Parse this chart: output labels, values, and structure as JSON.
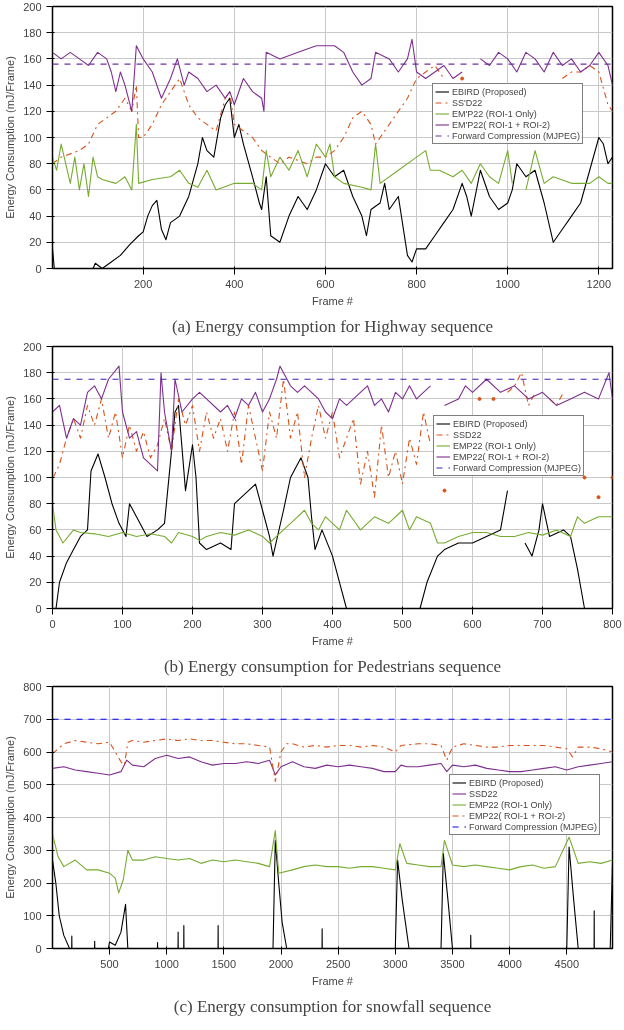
{
  "chart_data": [
    {
      "type": "line",
      "title": "(a) Energy consumption for Highway sequence",
      "xlabel": "Frame #",
      "ylabel": "Energy Consumption (mJ/Frame)",
      "xlim": [
        1,
        1230
      ],
      "xticks": [
        200,
        400,
        600,
        800,
        1000,
        1200
      ],
      "ylim": [
        0,
        200
      ],
      "yticks": [
        0,
        20,
        40,
        60,
        80,
        100,
        120,
        140,
        160,
        180,
        200
      ],
      "grid": true,
      "legend": "right",
      "series": [
        {
          "name": "EBIRD (Proposed)",
          "color": "#000000",
          "line_style": "solid",
          "x": [
            1,
            5,
            90,
            95,
            110,
            130,
            150,
            170,
            190,
            200,
            210,
            220,
            230,
            240,
            250,
            260,
            280,
            300,
            320,
            330,
            340,
            355,
            370,
            380,
            390,
            400,
            410,
            420,
            440,
            455,
            460,
            470,
            480,
            500,
            520,
            540,
            560,
            580,
            600,
            620,
            640,
            660,
            680,
            690,
            700,
            720,
            730,
            740,
            760,
            780,
            790,
            800,
            820,
            840,
            860,
            880,
            900,
            910,
            920,
            940,
            960,
            980,
            1000,
            1010,
            1020,
            1040,
            1060,
            1080,
            1100,
            1120,
            1140,
            1160,
            1180,
            1200,
            1210,
            1220,
            1230
          ],
          "values": [
            15,
            0,
            0,
            4,
            0,
            5,
            10,
            18,
            25,
            28,
            40,
            48,
            52,
            30,
            22,
            35,
            40,
            55,
            80,
            100,
            90,
            85,
            115,
            125,
            130,
            100,
            110,
            95,
            70,
            50,
            45,
            70,
            25,
            20,
            40,
            55,
            45,
            60,
            80,
            70,
            75,
            55,
            40,
            25,
            45,
            50,
            65,
            45,
            55,
            10,
            5,
            15,
            15,
            25,
            35,
            45,
            65,
            55,
            40,
            75,
            55,
            45,
            50,
            60,
            80,
            70,
            75,
            50,
            20,
            30,
            40,
            50,
            75,
            100,
            95,
            80,
            85
          ]
        },
        {
          "name": "SS'D22",
          "color": "#d95319",
          "line_style": "dashdot",
          "x": [
            1,
            20,
            60,
            80,
            100,
            120,
            140,
            160,
            175,
            185,
            190,
            200,
            220,
            240,
            260,
            280,
            300,
            320,
            340,
            360,
            380,
            390,
            400,
            420,
            440,
            460,
            480,
            500,
            520,
            560,
            580,
            600,
            620,
            640,
            660,
            680,
            700,
            710,
            720,
            740,
            760,
            780,
            800,
            820,
            840,
            860,
            880,
            900,
            920,
            940,
            960,
            980,
            1000,
            1020,
            1040,
            1060,
            1080,
            1100,
            1120,
            1140,
            1160,
            1180,
            1200,
            1220,
            1230
          ],
          "values": [
            80,
            85,
            90,
            95,
            110,
            115,
            120,
            130,
            120,
            140,
            100,
            100,
            110,
            125,
            135,
            145,
            125,
            115,
            110,
            105,
            130,
            135,
            110,
            105,
            100,
            90,
            85,
            80,
            85,
            80,
            85,
            85,
            90,
            100,
            115,
            120,
            110,
            95,
            100,
            110,
            120,
            130,
            145,
            150,
            155,
            145,
            null,
            145,
            null,
            null,
            null,
            null,
            null,
            null,
            null,
            null,
            null,
            null,
            145,
            150,
            150,
            155,
            150,
            125,
            120
          ]
        },
        {
          "name": "EM'P22 (ROI-1 Only)",
          "color": "#77ac30",
          "line_style": "solid",
          "x": [
            1,
            10,
            20,
            30,
            40,
            50,
            60,
            70,
            80,
            90,
            100,
            110,
            140,
            160,
            175,
            185,
            190,
            220,
            260,
            280,
            300,
            320,
            340,
            360,
            400,
            440,
            460,
            470,
            480,
            500,
            520,
            540,
            560,
            580,
            600,
            610,
            620,
            640,
            680,
            700,
            710,
            720,
            760,
            800,
            820,
            830,
            850,
            880,
            900,
            920,
            940,
            960,
            980,
            1000,
            1010,
            1020,
            1040,
            1060,
            1080,
            1100,
            1140,
            1180,
            1200,
            1220,
            1230
          ],
          "values": [
            85,
            75,
            95,
            80,
            65,
            85,
            60,
            80,
            55,
            85,
            70,
            68,
            65,
            70,
            60,
            110,
            65,
            68,
            70,
            75,
            65,
            62,
            75,
            60,
            65,
            65,
            60,
            90,
            70,
            85,
            75,
            90,
            70,
            95,
            85,
            95,
            70,
            65,
            62,
            60,
            95,
            65,
            75,
            85,
            90,
            75,
            75,
            70,
            75,
            65,
            80,
            70,
            65,
            90,
            65,
            null,
            60,
            90,
            65,
            70,
            65,
            65,
            70,
            65,
            65
          ]
        },
        {
          "name": "EM'P22( ROI-1 + ROI-2)",
          "color": "#7e2f8e",
          "line_style": "solid",
          "x": [
            1,
            20,
            40,
            60,
            80,
            100,
            120,
            130,
            140,
            150,
            160,
            175,
            185,
            200,
            220,
            240,
            260,
            275,
            290,
            300,
            320,
            340,
            360,
            380,
            390,
            400,
            420,
            440,
            460,
            465,
            470,
            500,
            540,
            580,
            620,
            640,
            660,
            680,
            700,
            710,
            740,
            760,
            780,
            790,
            800,
            820,
            840,
            860,
            880,
            900,
            920,
            940,
            960,
            980,
            1000,
            1020,
            1040,
            1060,
            1080,
            1100,
            1120,
            1140,
            1160,
            1180,
            1200,
            1220,
            1230
          ],
          "values": [
            165,
            160,
            165,
            160,
            155,
            165,
            160,
            150,
            135,
            150,
            140,
            120,
            170,
            160,
            150,
            130,
            145,
            160,
            140,
            150,
            145,
            135,
            140,
            130,
            135,
            125,
            145,
            135,
            130,
            120,
            165,
            160,
            165,
            170,
            170,
            165,
            150,
            140,
            145,
            165,
            160,
            150,
            160,
            175,
            150,
            145,
            150,
            155,
            145,
            150,
            null,
            160,
            155,
            165,
            160,
            150,
            165,
            160,
            150,
            165,
            155,
            160,
            150,
            155,
            165,
            155,
            140
          ]
        },
        {
          "name": "Forward Compression (MJPEG)",
          "color": "#7030a0",
          "line_style": "dashed",
          "x": [
            1,
            1230
          ],
          "values": [
            156,
            156
          ]
        }
      ]
    },
    {
      "type": "line",
      "title": "(b) Energy consumption for Pedestrians sequence",
      "xlabel": "Frame #",
      "ylabel": "Energy Consumption (mJ/Frame)",
      "xlim": [
        0,
        800
      ],
      "xticks": [
        0,
        100,
        200,
        300,
        400,
        500,
        600,
        700,
        800
      ],
      "ylim": [
        0,
        200
      ],
      "yticks": [
        0,
        20,
        40,
        60,
        80,
        100,
        120,
        140,
        160,
        180,
        200
      ],
      "grid": true,
      "legend": "right",
      "series": [
        {
          "name": "EBIRD (Proposed)",
          "color": "#000000",
          "line_style": "solid",
          "x": [
            0,
            5,
            10,
            20,
            30,
            40,
            50,
            55,
            65,
            75,
            85,
            95,
            105,
            110,
            120,
            135,
            150,
            160,
            170,
            175,
            180,
            190,
            200,
            205,
            210,
            220,
            240,
            255,
            260,
            280,
            290,
            300,
            310,
            315,
            330,
            340,
            355,
            365,
            370,
            375,
            385,
            400,
            410,
            420,
            525,
            535,
            550,
            560,
            580,
            600,
            620,
            640,
            650,
            660,
            670,
            675,
            685,
            695,
            700,
            710,
            730,
            740,
            750,
            760,
            800
          ],
          "values": [
            0,
            0,
            20,
            35,
            45,
            55,
            60,
            105,
            118,
            100,
            80,
            65,
            55,
            80,
            70,
            55,
            60,
            65,
            120,
            150,
            155,
            90,
            125,
            100,
            50,
            45,
            50,
            45,
            80,
            90,
            95,
            75,
            55,
            40,
            75,
            100,
            115,
            100,
            70,
            45,
            60,
            40,
            20,
            0,
            0,
            20,
            40,
            45,
            50,
            50,
            55,
            60,
            90,
            null,
            null,
            50,
            40,
            60,
            80,
            55,
            60,
            55,
            30,
            0,
            0
          ]
        },
        {
          "name": "SSD22",
          "color": "#d95319",
          "line_style": "dashdot",
          "x": [
            1,
            10,
            20,
            30,
            40,
            50,
            60,
            70,
            80,
            90,
            100,
            110,
            120,
            130,
            140,
            150,
            160,
            170,
            180,
            190,
            200,
            210,
            220,
            230,
            240,
            250,
            260,
            270,
            280,
            290,
            300,
            310,
            320,
            330,
            340,
            350,
            360,
            370,
            380,
            390,
            400,
            410,
            420,
            430,
            440,
            450,
            460,
            470,
            480,
            490,
            500,
            510,
            520,
            530,
            540,
            550,
            560,
            570,
            580,
            590,
            600,
            610,
            620,
            630,
            640,
            650,
            660,
            670,
            680,
            690,
            700,
            710,
            720,
            730,
            740,
            750,
            760,
            770,
            780,
            790,
            800
          ],
          "values": [
            100,
            110,
            130,
            145,
            130,
            155,
            140,
            160,
            130,
            150,
            115,
            140,
            120,
            135,
            115,
            125,
            145,
            120,
            160,
            140,
            155,
            120,
            150,
            130,
            145,
            120,
            150,
            110,
            155,
            130,
            105,
            150,
            130,
            175,
            130,
            150,
            100,
            130,
            155,
            130,
            150,
            115,
            130,
            145,
            95,
            120,
            85,
            140,
            100,
            120,
            95,
            130,
            110,
            150,
            125,
            null,
            90,
            null,
            null,
            null,
            null,
            160,
            null,
            160,
            null,
            165,
            170,
            180,
            155,
            165,
            null,
            160,
            155,
            165,
            null,
            null,
            100,
            null,
            85,
            null,
            100
          ]
        },
        {
          "name": "EMP22 (ROI-1 Only)",
          "color": "#77ac30",
          "line_style": "solid",
          "x": [
            0,
            5,
            15,
            30,
            40,
            60,
            80,
            100,
            120,
            140,
            160,
            170,
            180,
            200,
            210,
            220,
            240,
            260,
            280,
            300,
            310,
            320,
            330,
            340,
            350,
            360,
            370,
            380,
            390,
            400,
            410,
            420,
            440,
            460,
            480,
            500,
            510,
            520,
            540,
            550,
            560,
            580,
            600,
            620,
            640,
            660,
            680,
            700,
            720,
            740,
            750,
            760,
            780,
            800
          ],
          "values": [
            80,
            60,
            50,
            60,
            58,
            57,
            55,
            58,
            55,
            57,
            55,
            50,
            58,
            55,
            52,
            55,
            58,
            56,
            60,
            55,
            50,
            55,
            60,
            65,
            70,
            75,
            65,
            60,
            70,
            65,
            60,
            75,
            60,
            70,
            65,
            75,
            60,
            70,
            65,
            50,
            50,
            55,
            58,
            58,
            55,
            55,
            58,
            56,
            60,
            55,
            70,
            65,
            70,
            70
          ]
        },
        {
          "name": "EMP22( ROI-1 + ROI-2)",
          "color": "#7e2f8e",
          "line_style": "solid",
          "x": [
            0,
            10,
            20,
            30,
            40,
            50,
            60,
            70,
            80,
            95,
            100,
            110,
            120,
            130,
            140,
            150,
            155,
            160,
            170,
            175,
            185,
            200,
            210,
            220,
            240,
            250,
            260,
            270,
            280,
            290,
            300,
            310,
            320,
            325,
            340,
            350,
            360,
            370,
            380,
            390,
            400,
            410,
            420,
            440,
            450,
            460,
            470,
            480,
            490,
            500,
            510,
            520,
            530,
            540,
            550,
            560,
            580,
            590,
            600,
            620,
            640,
            660,
            680,
            700,
            720,
            740,
            760,
            780,
            795,
            800
          ],
          "values": [
            150,
            155,
            130,
            145,
            140,
            165,
            170,
            160,
            175,
            185,
            150,
            130,
            135,
            115,
            110,
            105,
            180,
            150,
            120,
            175,
            150,
            160,
            165,
            160,
            150,
            155,
            145,
            160,
            155,
            165,
            150,
            160,
            175,
            185,
            170,
            165,
            170,
            165,
            160,
            150,
            145,
            160,
            155,
            165,
            170,
            155,
            160,
            150,
            165,
            160,
            170,
            160,
            165,
            170,
            null,
            155,
            160,
            170,
            165,
            175,
            165,
            170,
            160,
            165,
            155,
            160,
            165,
            160,
            180,
            160
          ]
        },
        {
          "name": "Forward Compression (MJPEG)",
          "color": "#3d1fb5",
          "line_style": "dashed",
          "x": [
            0,
            800
          ],
          "values": [
            175,
            175
          ]
        }
      ]
    },
    {
      "type": "line",
      "title": "(c) Energy consumption for snowfall sequence",
      "xlabel": "Frame #",
      "ylabel": "Energy Consumption (mJ/Frame)",
      "xlim": [
        1,
        4900
      ],
      "xticks": [
        500,
        1000,
        1500,
        2000,
        2500,
        3000,
        3500,
        4000,
        4500
      ],
      "ylim": [
        0,
        800
      ],
      "yticks": [
        0,
        100,
        200,
        300,
        400,
        500,
        600,
        700,
        800
      ],
      "grid": true,
      "legend": "right",
      "series": [
        {
          "name": "EBIRD (Proposed)",
          "color": "#000000",
          "line_style": "solid",
          "x": [
            1,
            30,
            60,
            100,
            150,
            169,
            170,
            171,
            369,
            370,
            371,
            490,
            500,
            550,
            600,
            640,
            660,
            919,
            920,
            921,
            1099,
            1100,
            1101,
            1149,
            1150,
            1151,
            1449,
            1450,
            1451,
            1930,
            1950,
            1980,
            2010,
            2050,
            2359,
            2360,
            2361,
            3000,
            3020,
            3060,
            3120,
            3400,
            3420,
            3460,
            3500,
            3659,
            3660,
            3661,
            4500,
            4520,
            4560,
            4600,
            4739,
            4740,
            4741,
            4880,
            4900
          ],
          "values": [
            270,
            200,
            100,
            40,
            0,
            0,
            38,
            0,
            0,
            22,
            0,
            0,
            20,
            10,
            50,
            135,
            0,
            0,
            18,
            0,
            0,
            50,
            0,
            0,
            70,
            0,
            0,
            70,
            0,
            0,
            330,
            200,
            80,
            0,
            0,
            60,
            0,
            0,
            270,
            150,
            0,
            0,
            290,
            150,
            0,
            0,
            40,
            0,
            0,
            310,
            150,
            0,
            0,
            115,
            0,
            0,
            260
          ]
        },
        {
          "name": "SSD22",
          "color": "#7e2f8e",
          "line_style": "solid",
          "x": [
            1,
            100,
            200,
            300,
            400,
            500,
            600,
            650,
            700,
            800,
            900,
            1000,
            1100,
            1200,
            1300,
            1400,
            1500,
            1600,
            1700,
            1800,
            1900,
            1950,
            2000,
            2100,
            2200,
            2300,
            2400,
            2500,
            2600,
            2700,
            2800,
            2900,
            3000,
            3050,
            3100,
            3200,
            3300,
            3400,
            3450,
            3500,
            3600,
            3700,
            3800,
            3900,
            4000,
            4100,
            4200,
            4300,
            4400,
            4500,
            4600,
            4700,
            4800,
            4900
          ],
          "values": [
            550,
            555,
            545,
            540,
            535,
            530,
            540,
            575,
            560,
            555,
            580,
            590,
            580,
            585,
            570,
            560,
            565,
            565,
            570,
            565,
            575,
            530,
            555,
            570,
            555,
            550,
            560,
            555,
            560,
            555,
            550,
            540,
            540,
            560,
            555,
            555,
            560,
            565,
            540,
            560,
            555,
            560,
            550,
            545,
            540,
            540,
            545,
            550,
            555,
            545,
            555,
            560,
            565,
            570
          ]
        },
        {
          "name": "EMP22 (ROI-1 Only)",
          "color": "#77ac30",
          "line_style": "solid",
          "x": [
            1,
            50,
            100,
            200,
            300,
            400,
            500,
            550,
            580,
            620,
            660,
            700,
            800,
            900,
            1000,
            1100,
            1200,
            1300,
            1400,
            1500,
            1600,
            1700,
            1800,
            1900,
            1950,
            1980,
            2100,
            2200,
            2300,
            2400,
            2500,
            2600,
            2700,
            2800,
            2900,
            3000,
            3040,
            3100,
            3200,
            3300,
            3400,
            3430,
            3500,
            3600,
            3700,
            3800,
            3900,
            4000,
            4100,
            4200,
            4300,
            4400,
            4520,
            4600,
            4700,
            4800,
            4900
          ],
          "values": [
            350,
            280,
            250,
            270,
            240,
            240,
            230,
            215,
            170,
            210,
            300,
            270,
            270,
            280,
            275,
            270,
            275,
            260,
            270,
            265,
            270,
            265,
            260,
            250,
            360,
            230,
            240,
            250,
            255,
            250,
            250,
            245,
            250,
            250,
            245,
            240,
            320,
            260,
            255,
            250,
            250,
            330,
            255,
            250,
            255,
            250,
            245,
            240,
            250,
            255,
            245,
            250,
            340,
            260,
            265,
            260,
            270
          ]
        },
        {
          "name": "EMP22( ROI-1 + ROI-2)",
          "color": "#d95319",
          "line_style": "dashdot",
          "x": [
            1,
            100,
            200,
            300,
            400,
            500,
            550,
            600,
            630,
            660,
            700,
            800,
            900,
            1000,
            1100,
            1200,
            1300,
            1400,
            1500,
            1600,
            1700,
            1800,
            1900,
            1950,
            2000,
            2050,
            2100,
            2200,
            2300,
            2400,
            2500,
            2600,
            2700,
            2800,
            2900,
            3000,
            3050,
            3200,
            3300,
            3400,
            3450,
            3500,
            3600,
            3700,
            3800,
            3900,
            4000,
            4100,
            4200,
            4300,
            4400,
            4500,
            4550,
            4600,
            4700,
            4800,
            4900
          ],
          "values": [
            595,
            625,
            635,
            630,
            625,
            630,
            600,
            570,
            560,
            630,
            635,
            630,
            635,
            640,
            635,
            640,
            635,
            635,
            630,
            625,
            625,
            620,
            615,
            510,
            600,
            625,
            625,
            615,
            620,
            615,
            620,
            620,
            615,
            620,
            615,
            600,
            620,
            625,
            625,
            620,
            575,
            615,
            625,
            620,
            615,
            615,
            620,
            620,
            620,
            620,
            615,
            610,
            585,
            615,
            615,
            610,
            600
          ]
        },
        {
          "name": "Forward Compression (MJPEG)",
          "color": "#0000ff",
          "line_style": "dashed",
          "x": [
            1,
            4900
          ],
          "values": [
            700,
            700
          ]
        }
      ]
    }
  ]
}
